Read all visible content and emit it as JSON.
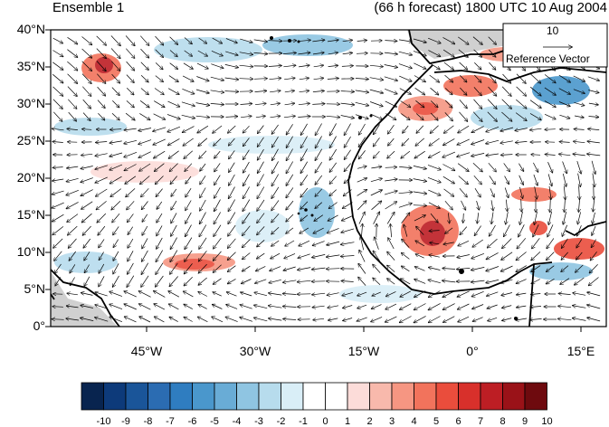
{
  "header": {
    "left_title": "Ensemble 1",
    "right_title": "(66 h forecast) 1800 UTC 10 Aug 2004"
  },
  "map": {
    "lat_labels": [
      "40°N",
      "35°N",
      "30°N",
      "25°N",
      "20°N",
      "15°N",
      "10°N",
      "5°N",
      "0°"
    ],
    "lon_labels": [
      "45°W",
      "30°W",
      "15°W",
      "0°",
      "15°E"
    ],
    "extent": {
      "lon_min": -58,
      "lon_max": 19,
      "lat_min": 0,
      "lat_max": 40
    }
  },
  "reference_vector": {
    "value": "10",
    "label": "Reference Vector"
  },
  "colorbar": {
    "labels": [
      "-10",
      "-9",
      "-8",
      "-7",
      "-6",
      "-5",
      "-4",
      "-3",
      "-2",
      "-1",
      "0",
      "1",
      "2",
      "3",
      "4",
      "5",
      "6",
      "7",
      "8",
      "9",
      "10"
    ],
    "colors": [
      "#08244f",
      "#0d3a7a",
      "#1a5599",
      "#2b6cb2",
      "#2f7dc0",
      "#4a97cc",
      "#69acd6",
      "#8fc5e2",
      "#b7dced",
      "#d9eef7",
      "#ffffff",
      "#ffffff",
      "#fcdcd9",
      "#f8b9ac",
      "#f69682",
      "#f2735c",
      "#ea4d3c",
      "#d8302b",
      "#bd1e24",
      "#9a1218",
      "#6e0a0e"
    ]
  }
}
